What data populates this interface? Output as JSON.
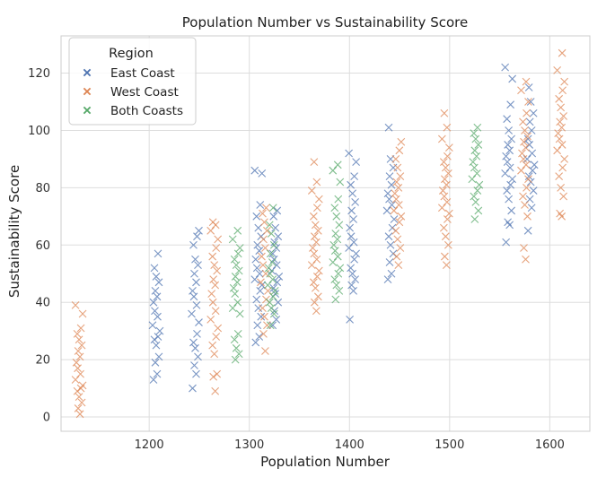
{
  "chart_data": {
    "type": "scatter",
    "title": "Population Number vs Sustainability Score",
    "xlabel": "Population Number",
    "ylabel": "Sustainability Score",
    "xlim": [
      1112,
      1640
    ],
    "ylim": [
      -5,
      133
    ],
    "xticks": [
      1200,
      1300,
      1400,
      1500,
      1600
    ],
    "yticks": [
      0,
      20,
      40,
      60,
      80,
      100,
      120
    ],
    "grid": true,
    "marker": "x",
    "legend": {
      "title": "Region",
      "position": "top-left"
    },
    "series": [
      {
        "name": "East Coast",
        "color": "#4c72b0",
        "clusters": [
          {
            "x": 1207,
            "values": [
              13,
              15,
              19,
              21,
              25,
              27,
              28,
              30,
              32,
              35,
              37,
              40,
              42,
              44,
              47,
              49,
              52,
              57
            ]
          },
          {
            "x": 1246,
            "values": [
              10,
              15,
              18,
              21,
              24,
              26,
              29,
              33,
              36,
              39,
              42,
              44,
              47,
              50,
              53,
              55,
              60,
              63,
              65
            ]
          },
          {
            "x": 1309,
            "values": [
              26,
              28,
              32,
              35,
              38,
              41,
              44,
              46,
              48,
              50,
              52,
              55,
              58,
              60,
              63,
              66,
              70,
              74,
              85,
              86
            ]
          },
          {
            "x": 1326,
            "values": [
              32,
              34,
              37,
              40,
              43,
              45,
              47,
              49,
              51,
              53,
              55,
              57,
              59,
              61,
              63,
              66,
              70,
              72
            ]
          },
          {
            "x": 1403,
            "values": [
              34,
              44,
              46,
              48,
              50,
              52,
              55,
              57,
              59,
              61,
              63,
              66,
              69,
              72,
              75,
              78,
              81,
              84,
              89,
              92
            ]
          },
          {
            "x": 1441,
            "values": [
              48,
              50,
              54,
              57,
              60,
              63,
              66,
              69,
              72,
              74,
              76,
              78,
              81,
              84,
              87,
              90,
              101
            ]
          },
          {
            "x": 1559,
            "values": [
              61,
              67,
              68,
              72,
              76,
              79,
              81,
              83,
              85,
              87,
              89,
              91,
              93,
              95,
              97,
              100,
              104,
              109,
              118,
              122
            ]
          },
          {
            "x": 1581,
            "values": [
              65,
              73,
              76,
              79,
              82,
              84,
              86,
              88,
              90,
              92,
              95,
              97,
              100,
              103,
              106,
              110,
              115
            ]
          }
        ]
      },
      {
        "name": "West Coast",
        "color": "#dd8452",
        "clusters": [
          {
            "x": 1130,
            "values": [
              1,
              3,
              5,
              7,
              9,
              10,
              11,
              13,
              15,
              17,
              19,
              21,
              23,
              25,
              27,
              29,
              31,
              36,
              39
            ]
          },
          {
            "x": 1265,
            "values": [
              9,
              14,
              15,
              22,
              25,
              28,
              31,
              34,
              37,
              40,
              43,
              46,
              48,
              51,
              53,
              56,
              59,
              62,
              65,
              67,
              68
            ]
          },
          {
            "x": 1315,
            "values": [
              23,
              29,
              32,
              35,
              38,
              41,
              44,
              47,
              50,
              53,
              56,
              59,
              62,
              65,
              68,
              71,
              73
            ]
          },
          {
            "x": 1366,
            "values": [
              37,
              40,
              42,
              45,
              47,
              49,
              51,
              53,
              55,
              57,
              59,
              61,
              63,
              65,
              67,
              70,
              73,
              76,
              79,
              82,
              89
            ]
          },
          {
            "x": 1448,
            "values": [
              53,
              56,
              59,
              62,
              65,
              68,
              70,
              72,
              74,
              76,
              78,
              80,
              82,
              84,
              87,
              90,
              93,
              96
            ]
          },
          {
            "x": 1496,
            "values": [
              53,
              56,
              60,
              63,
              66,
              69,
              71,
              73,
              75,
              77,
              79,
              81,
              83,
              85,
              87,
              89,
              91,
              94,
              97,
              101,
              106
            ]
          },
          {
            "x": 1575,
            "values": [
              55,
              59,
              70,
              74,
              77,
              80,
              83,
              86,
              88,
              90,
              92,
              94,
              96,
              98,
              100,
              103,
              106,
              110,
              114,
              117
            ]
          },
          {
            "x": 1611,
            "values": [
              70,
              71,
              77,
              80,
              84,
              87,
              90,
              93,
              95,
              97,
              99,
              101,
              103,
              105,
              108,
              111,
              114,
              117,
              121,
              127
            ]
          }
        ]
      },
      {
        "name": "Both Coasts",
        "color": "#55a868",
        "clusters": [
          {
            "x": 1287,
            "values": [
              20,
              22,
              24,
              27,
              29,
              36,
              38,
              40,
              43,
              45,
              47,
              49,
              51,
              53,
              55,
              57,
              59,
              62,
              65
            ]
          },
          {
            "x": 1322,
            "values": [
              32,
              36,
              38,
              40,
              42,
              44,
              46,
              48,
              50,
              52,
              54,
              57,
              60,
              64,
              67,
              73
            ]
          },
          {
            "x": 1387,
            "values": [
              41,
              44,
              46,
              48,
              50,
              52,
              54,
              56,
              58,
              60,
              62,
              64,
              67,
              70,
              73,
              76,
              82,
              86,
              88
            ]
          },
          {
            "x": 1526,
            "values": [
              69,
              72,
              75,
              77,
              79,
              81,
              83,
              85,
              87,
              89,
              91,
              93,
              95,
              97,
              99,
              101
            ]
          }
        ]
      }
    ]
  }
}
